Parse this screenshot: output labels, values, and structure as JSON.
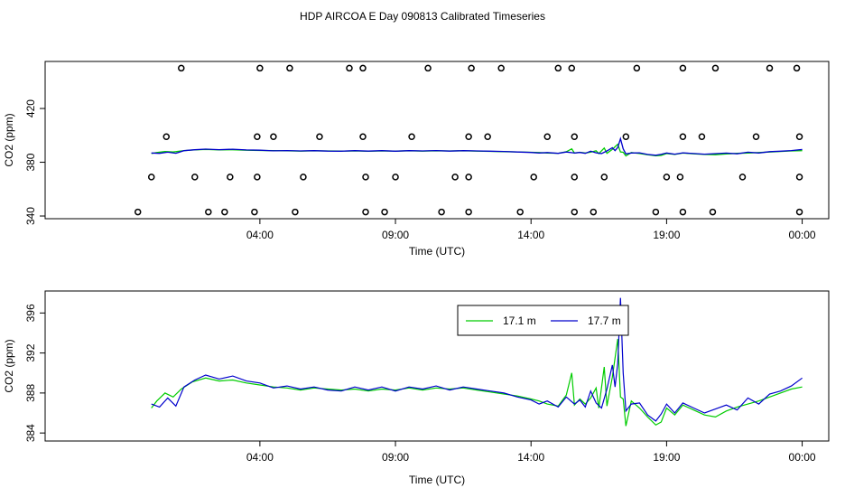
{
  "chart_title": "HDP AIRCOA E  Day 090813  Calibrated Timeseries",
  "chart_data": [
    {
      "type": "scatter",
      "title": "",
      "xlabel": "Time (UTC)",
      "ylabel": "CO2 (ppm)",
      "xlim": [
        -3.92,
        24.98
      ],
      "ylim": [
        338,
        455
      ],
      "x_ticks": [
        {
          "value": 4,
          "label": "04:00"
        },
        {
          "value": 9,
          "label": "09:00"
        },
        {
          "value": 14,
          "label": "14:00"
        },
        {
          "value": 19,
          "label": "19:00"
        },
        {
          "value": 24,
          "label": "00:00"
        }
      ],
      "y_ticks": [
        {
          "value": 340,
          "label": "340"
        },
        {
          "value": 380,
          "label": "380"
        },
        {
          "value": 420,
          "label": "420"
        }
      ],
      "calibration_points": {
        "levels": [
          343,
          369,
          399,
          450
        ],
        "points": [
          [
            -0.5,
            343
          ],
          [
            0.0,
            369
          ],
          [
            0.55,
            399
          ],
          [
            1.1,
            450
          ],
          [
            1.6,
            369
          ],
          [
            2.1,
            343
          ],
          [
            2.7,
            343
          ],
          [
            2.9,
            369
          ],
          [
            3.8,
            343
          ],
          [
            3.9,
            369
          ],
          [
            3.9,
            399
          ],
          [
            4.0,
            450
          ],
          [
            4.5,
            399
          ],
          [
            5.1,
            450
          ],
          [
            5.3,
            343
          ],
          [
            5.6,
            369
          ],
          [
            6.2,
            399
          ],
          [
            7.3,
            450
          ],
          [
            7.8,
            450
          ],
          [
            7.8,
            399
          ],
          [
            7.9,
            369
          ],
          [
            7.9,
            343
          ],
          [
            8.6,
            343
          ],
          [
            9.0,
            369
          ],
          [
            9.6,
            399
          ],
          [
            10.2,
            450
          ],
          [
            10.7,
            343
          ],
          [
            11.2,
            369
          ],
          [
            11.8,
            450
          ],
          [
            11.7,
            343
          ],
          [
            11.7,
            369
          ],
          [
            11.7,
            399
          ],
          [
            12.4,
            399
          ],
          [
            12.9,
            450
          ],
          [
            13.6,
            343
          ],
          [
            14.1,
            369
          ],
          [
            14.6,
            399
          ],
          [
            15.0,
            450
          ],
          [
            15.5,
            450
          ],
          [
            15.6,
            399
          ],
          [
            15.6,
            369
          ],
          [
            15.6,
            343
          ],
          [
            16.3,
            343
          ],
          [
            16.7,
            369
          ],
          [
            17.5,
            399
          ],
          [
            17.9,
            450
          ],
          [
            18.6,
            343
          ],
          [
            19.0,
            369
          ],
          [
            19.5,
            369
          ],
          [
            19.6,
            399
          ],
          [
            19.6,
            450
          ],
          [
            20.3,
            399
          ],
          [
            20.8,
            450
          ],
          [
            20.7,
            343
          ],
          [
            21.8,
            369
          ],
          [
            22.3,
            399
          ],
          [
            22.8,
            450
          ],
          [
            23.8,
            450
          ],
          [
            23.9,
            399
          ],
          [
            23.9,
            369
          ],
          [
            23.9,
            343
          ],
          [
            19.6,
            343
          ]
        ]
      }
    },
    {
      "type": "line",
      "title": "",
      "xlabel": "Time (UTC)",
      "ylabel": "CO2 (ppm)",
      "xlim": [
        -3.92,
        24.98
      ],
      "ylim": [
        383.2,
        398.2
      ],
      "x_ticks": [
        {
          "value": 4,
          "label": "04:00"
        },
        {
          "value": 9,
          "label": "09:00"
        },
        {
          "value": 14,
          "label": "14:00"
        },
        {
          "value": 19,
          "label": "19:00"
        },
        {
          "value": 24,
          "label": "00:00"
        }
      ],
      "y_ticks": [
        {
          "value": 384,
          "label": "384"
        },
        {
          "value": 388,
          "label": "388"
        },
        {
          "value": 392,
          "label": "392"
        },
        {
          "value": 396,
          "label": "396"
        }
      ],
      "legend": {
        "placement": "top-center"
      },
      "series": [
        {
          "name": "17.1 m",
          "color": "#00cc00",
          "points": [
            [
              0.0,
              386.5
            ],
            [
              0.2,
              387.2
            ],
            [
              0.5,
              388.0
            ],
            [
              0.8,
              387.6
            ],
            [
              1.1,
              388.4
            ],
            [
              1.5,
              389.1
            ],
            [
              2.0,
              389.5
            ],
            [
              2.5,
              389.2
            ],
            [
              3.0,
              389.3
            ],
            [
              3.5,
              389.0
            ],
            [
              4.0,
              388.8
            ],
            [
              4.5,
              388.6
            ],
            [
              5.0,
              388.5
            ],
            [
              5.5,
              388.3
            ],
            [
              6.0,
              388.5
            ],
            [
              6.5,
              388.4
            ],
            [
              7.0,
              388.3
            ],
            [
              7.5,
              388.4
            ],
            [
              8.0,
              388.2
            ],
            [
              8.5,
              388.4
            ],
            [
              9.0,
              388.3
            ],
            [
              9.5,
              388.5
            ],
            [
              10.0,
              388.3
            ],
            [
              10.5,
              388.5
            ],
            [
              11.0,
              388.4
            ],
            [
              11.5,
              388.5
            ],
            [
              12.0,
              388.3
            ],
            [
              12.5,
              388.1
            ],
            [
              13.0,
              387.9
            ],
            [
              13.5,
              387.7
            ],
            [
              14.0,
              387.4
            ],
            [
              14.3,
              387.2
            ],
            [
              14.6,
              386.9
            ],
            [
              15.0,
              386.7
            ],
            [
              15.3,
              387.8
            ],
            [
              15.5,
              390.0
            ],
            [
              15.6,
              386.8
            ],
            [
              15.8,
              387.4
            ],
            [
              16.0,
              386.9
            ],
            [
              16.2,
              387.5
            ],
            [
              16.4,
              388.5
            ],
            [
              16.5,
              386.5
            ],
            [
              16.7,
              390.6
            ],
            [
              16.8,
              386.7
            ],
            [
              17.0,
              389.6
            ],
            [
              17.1,
              391.5
            ],
            [
              17.2,
              393.4
            ],
            [
              17.3,
              387.6
            ],
            [
              17.4,
              387.4
            ],
            [
              17.5,
              384.7
            ],
            [
              17.7,
              387.2
            ],
            [
              18.0,
              386.5
            ],
            [
              18.3,
              385.6
            ],
            [
              18.6,
              384.8
            ],
            [
              18.8,
              385.1
            ],
            [
              19.0,
              386.5
            ],
            [
              19.3,
              385.8
            ],
            [
              19.6,
              386.8
            ],
            [
              20.0,
              386.3
            ],
            [
              20.4,
              385.8
            ],
            [
              20.8,
              385.6
            ],
            [
              21.2,
              386.2
            ],
            [
              21.6,
              386.6
            ],
            [
              22.0,
              386.9
            ],
            [
              22.4,
              387.2
            ],
            [
              22.8,
              387.6
            ],
            [
              23.2,
              388.0
            ],
            [
              23.6,
              388.4
            ],
            [
              24.0,
              388.6
            ]
          ]
        },
        {
          "name": "17.7 m",
          "color": "#0000cc",
          "points": [
            [
              0.0,
              386.9
            ],
            [
              0.3,
              386.6
            ],
            [
              0.6,
              387.5
            ],
            [
              0.9,
              386.7
            ],
            [
              1.2,
              388.6
            ],
            [
              1.6,
              389.3
            ],
            [
              2.0,
              389.8
            ],
            [
              2.5,
              389.4
            ],
            [
              3.0,
              389.7
            ],
            [
              3.5,
              389.2
            ],
            [
              4.0,
              389.0
            ],
            [
              4.5,
              388.5
            ],
            [
              5.0,
              388.7
            ],
            [
              5.5,
              388.4
            ],
            [
              6.0,
              388.6
            ],
            [
              6.5,
              388.3
            ],
            [
              7.0,
              388.2
            ],
            [
              7.5,
              388.6
            ],
            [
              8.0,
              388.3
            ],
            [
              8.5,
              388.6
            ],
            [
              9.0,
              388.2
            ],
            [
              9.5,
              388.6
            ],
            [
              10.0,
              388.4
            ],
            [
              10.5,
              388.7
            ],
            [
              11.0,
              388.3
            ],
            [
              11.5,
              388.6
            ],
            [
              12.0,
              388.4
            ],
            [
              12.5,
              388.2
            ],
            [
              13.0,
              388.0
            ],
            [
              13.5,
              387.6
            ],
            [
              14.0,
              387.3
            ],
            [
              14.3,
              386.9
            ],
            [
              14.6,
              387.2
            ],
            [
              15.0,
              386.6
            ],
            [
              15.3,
              387.6
            ],
            [
              15.6,
              386.9
            ],
            [
              15.8,
              387.3
            ],
            [
              16.0,
              386.6
            ],
            [
              16.2,
              388.2
            ],
            [
              16.4,
              387.0
            ],
            [
              16.6,
              386.5
            ],
            [
              16.8,
              388.4
            ],
            [
              17.0,
              390.8
            ],
            [
              17.1,
              388.6
            ],
            [
              17.2,
              391.0
            ],
            [
              17.3,
              397.5
            ],
            [
              17.4,
              390.0
            ],
            [
              17.5,
              386.2
            ],
            [
              17.7,
              386.9
            ],
            [
              18.0,
              387.0
            ],
            [
              18.3,
              385.8
            ],
            [
              18.6,
              385.2
            ],
            [
              18.8,
              385.9
            ],
            [
              19.0,
              386.9
            ],
            [
              19.3,
              386.0
            ],
            [
              19.6,
              387.0
            ],
            [
              20.0,
              386.5
            ],
            [
              20.4,
              386.0
            ],
            [
              20.8,
              386.4
            ],
            [
              21.2,
              386.8
            ],
            [
              21.6,
              386.3
            ],
            [
              22.0,
              387.5
            ],
            [
              22.4,
              386.9
            ],
            [
              22.8,
              387.9
            ],
            [
              23.2,
              388.2
            ],
            [
              23.6,
              388.7
            ],
            [
              24.0,
              389.5
            ]
          ]
        }
      ]
    }
  ]
}
